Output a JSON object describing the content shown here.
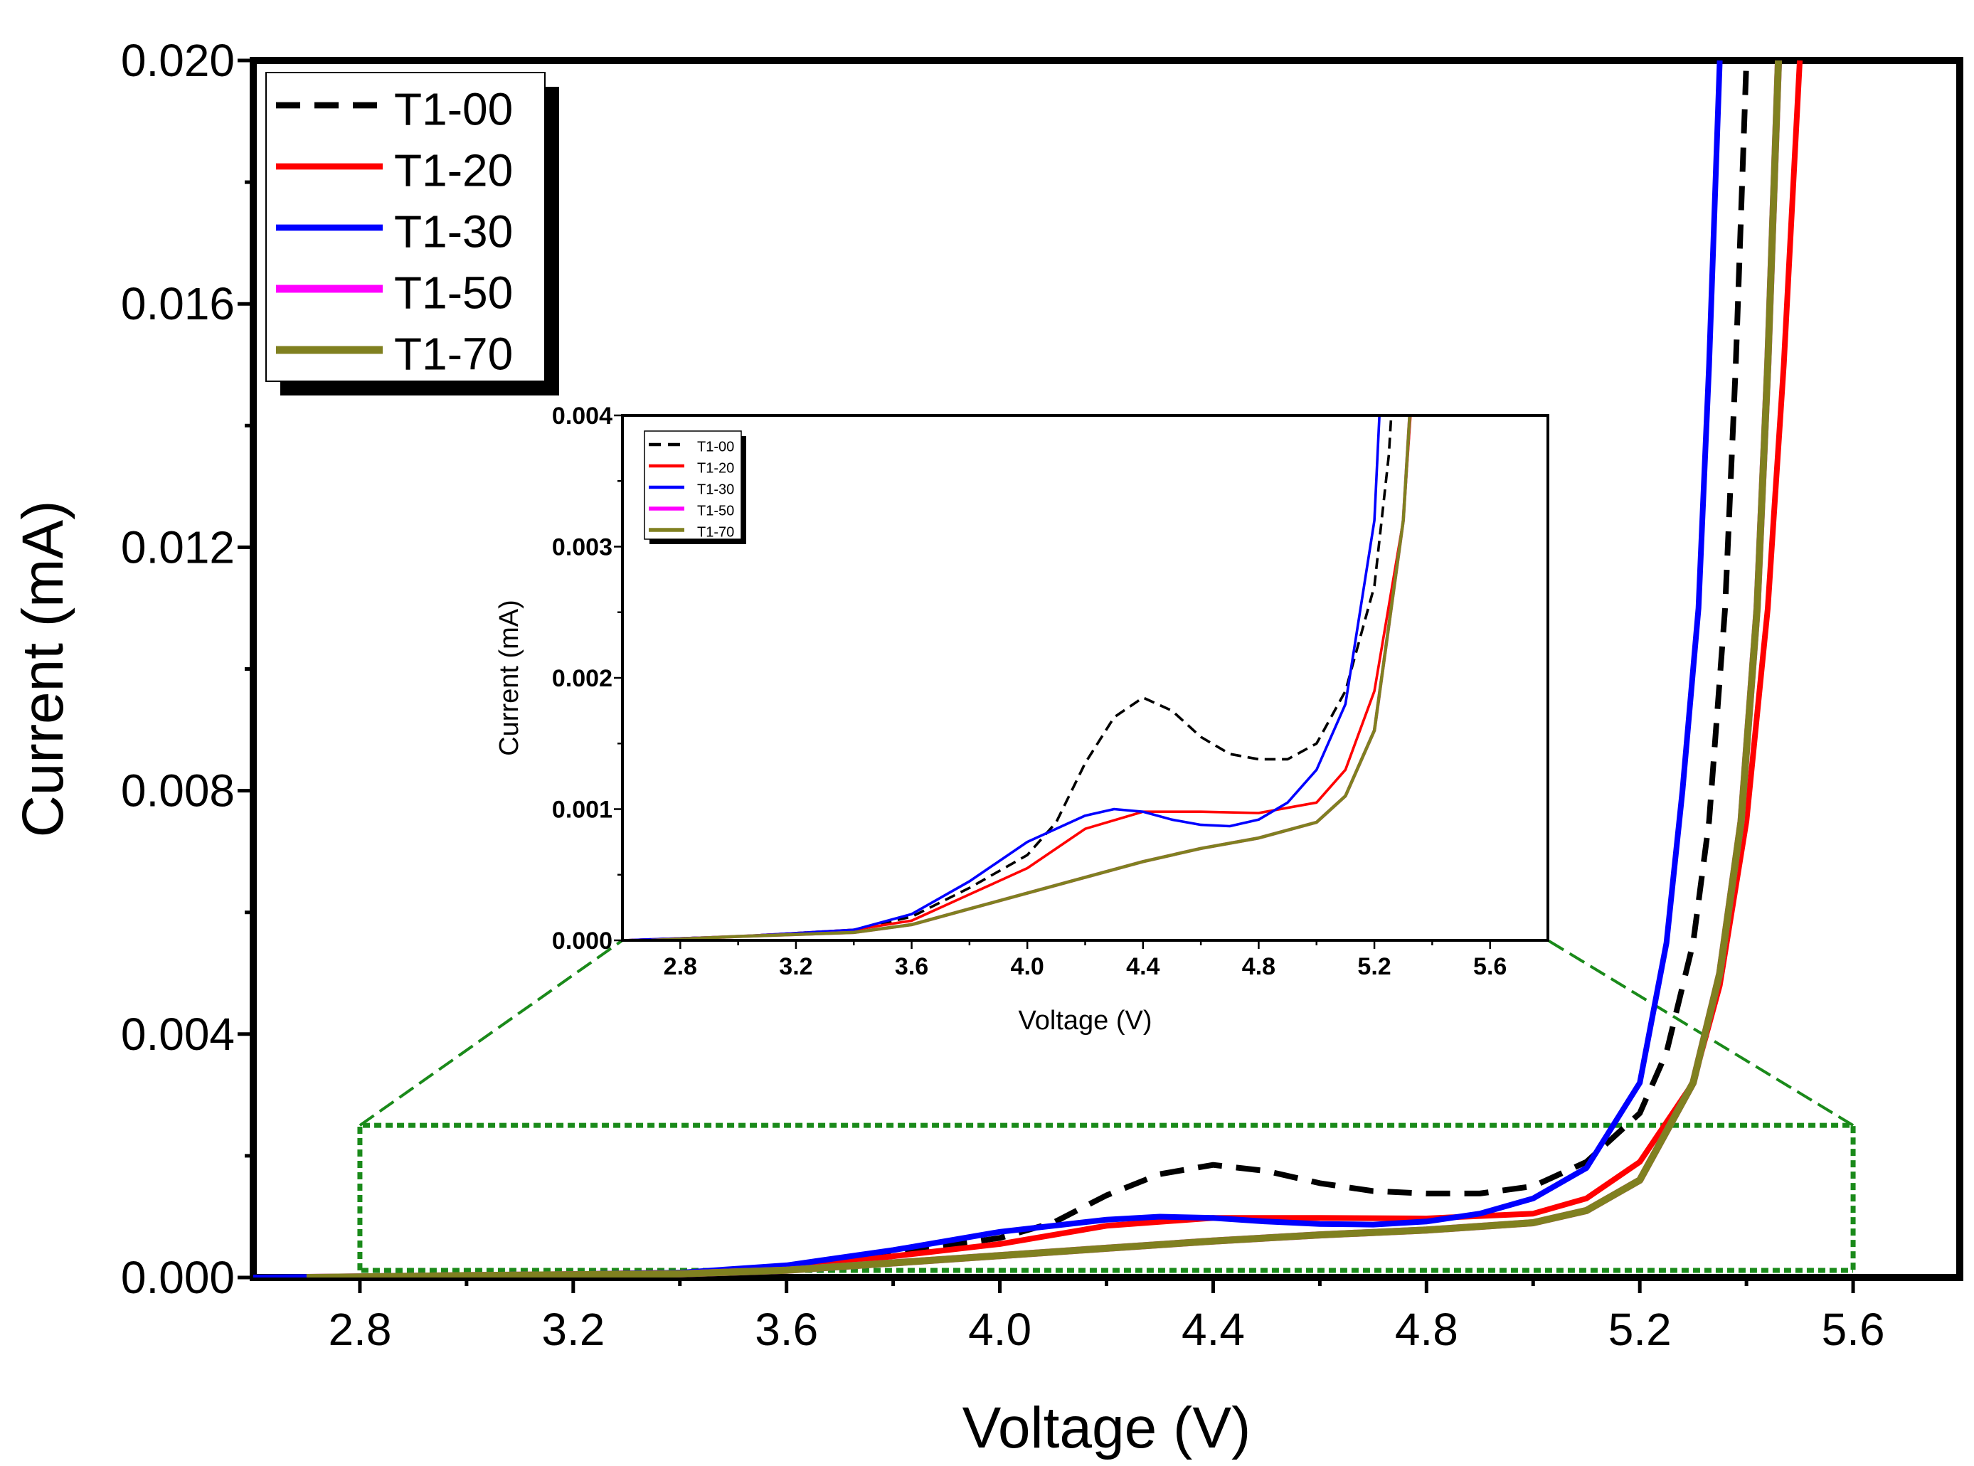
{
  "chart_data": [
    {
      "type": "line",
      "role": "main",
      "title": "",
      "xlabel": "Voltage (V)",
      "ylabel": "Current  (mA)",
      "xlim": [
        2.6,
        5.8
      ],
      "ylim": [
        0.0,
        0.02
      ],
      "xticks": [
        "2.8",
        "3.2",
        "3.6",
        "4.0",
        "4.4",
        "4.8",
        "5.2",
        "5.6"
      ],
      "yticks": [
        "0.000",
        "0.004",
        "0.008",
        "0.012",
        "0.016",
        "0.020"
      ],
      "legend_position": "top-left",
      "series": [
        {
          "name": "T1-00",
          "color": "#000000",
          "style": "dashed",
          "x": [
            2.6,
            3.0,
            3.4,
            3.6,
            3.8,
            4.0,
            4.1,
            4.2,
            4.3,
            4.4,
            4.5,
            4.6,
            4.7,
            4.8,
            4.9,
            5.0,
            5.1,
            5.2,
            5.25,
            5.3,
            5.33,
            5.36,
            5.38,
            5.4
          ],
          "y": [
            0.0,
            3e-05,
            8e-05,
            0.00018,
            0.0004,
            0.00065,
            0.0009,
            0.00135,
            0.0017,
            0.00185,
            0.00175,
            0.00155,
            0.00142,
            0.00138,
            0.00138,
            0.0015,
            0.0019,
            0.0027,
            0.0037,
            0.0055,
            0.0075,
            0.011,
            0.015,
            0.02
          ]
        },
        {
          "name": "T1-20",
          "color": "#ff0000",
          "style": "solid",
          "x": [
            2.6,
            3.0,
            3.4,
            3.6,
            3.8,
            4.0,
            4.2,
            4.4,
            4.6,
            4.8,
            5.0,
            5.1,
            5.2,
            5.3,
            5.35,
            5.4,
            5.44,
            5.47,
            5.5
          ],
          "y": [
            0.0,
            3e-05,
            8e-05,
            0.00015,
            0.00035,
            0.00055,
            0.00085,
            0.00098,
            0.00098,
            0.00097,
            0.00105,
            0.0013,
            0.0019,
            0.0032,
            0.0048,
            0.0075,
            0.011,
            0.015,
            0.02
          ]
        },
        {
          "name": "T1-30",
          "color": "#0000ff",
          "style": "solid",
          "x": [
            2.6,
            3.0,
            3.4,
            3.6,
            3.8,
            4.0,
            4.2,
            4.3,
            4.4,
            4.5,
            4.6,
            4.7,
            4.8,
            4.9,
            5.0,
            5.1,
            5.2,
            5.25,
            5.28,
            5.31,
            5.33,
            5.35
          ],
          "y": [
            0.0,
            3e-05,
            8e-05,
            0.0002,
            0.00045,
            0.00075,
            0.00095,
            0.001,
            0.00098,
            0.00092,
            0.00088,
            0.00087,
            0.00092,
            0.00105,
            0.0013,
            0.0018,
            0.0032,
            0.0055,
            0.008,
            0.011,
            0.015,
            0.02
          ]
        },
        {
          "name": "T1-50",
          "color": "#ff00ff",
          "style": "solid-thick",
          "x": [
            2.7,
            3.0,
            3.4,
            3.6,
            3.8,
            4.0,
            4.2,
            4.4,
            4.6,
            4.8,
            5.0,
            5.1,
            5.2,
            5.3,
            5.35,
            5.39,
            5.42,
            5.44,
            5.46
          ],
          "y": [
            0.0,
            3e-05,
            6e-05,
            0.00012,
            0.00024,
            0.00036,
            0.00048,
            0.0006,
            0.0007,
            0.00078,
            0.0009,
            0.0011,
            0.0016,
            0.0032,
            0.005,
            0.0075,
            0.011,
            0.015,
            0.02
          ]
        },
        {
          "name": "T1-70",
          "color": "#808020",
          "style": "solid-thick",
          "x": [
            2.7,
            3.0,
            3.4,
            3.6,
            3.8,
            4.0,
            4.2,
            4.4,
            4.6,
            4.8,
            5.0,
            5.1,
            5.2,
            5.3,
            5.35,
            5.39,
            5.42,
            5.44,
            5.46
          ],
          "y": [
            0.0,
            3e-05,
            6e-05,
            0.00012,
            0.00024,
            0.00036,
            0.00048,
            0.0006,
            0.0007,
            0.00078,
            0.0009,
            0.0011,
            0.0016,
            0.0032,
            0.005,
            0.0075,
            0.011,
            0.015,
            0.02
          ]
        }
      ]
    },
    {
      "type": "line",
      "role": "inset",
      "title": "",
      "xlabel": "Voltage (V)",
      "ylabel": "Current (mA)",
      "xlim": [
        2.6,
        5.8
      ],
      "ylim": [
        0.0,
        0.004
      ],
      "xticks": [
        "2.8",
        "3.2",
        "3.6",
        "4.0",
        "4.4",
        "4.8",
        "5.2",
        "5.6"
      ],
      "yticks": [
        "0.000",
        "0.001",
        "0.002",
        "0.003",
        "0.004"
      ],
      "legend_position": "top-left",
      "zoom_region": {
        "x": [
          2.8,
          5.6
        ],
        "y": [
          0.0,
          0.0025
        ]
      },
      "series_ref": "same as main chart series"
    }
  ]
}
